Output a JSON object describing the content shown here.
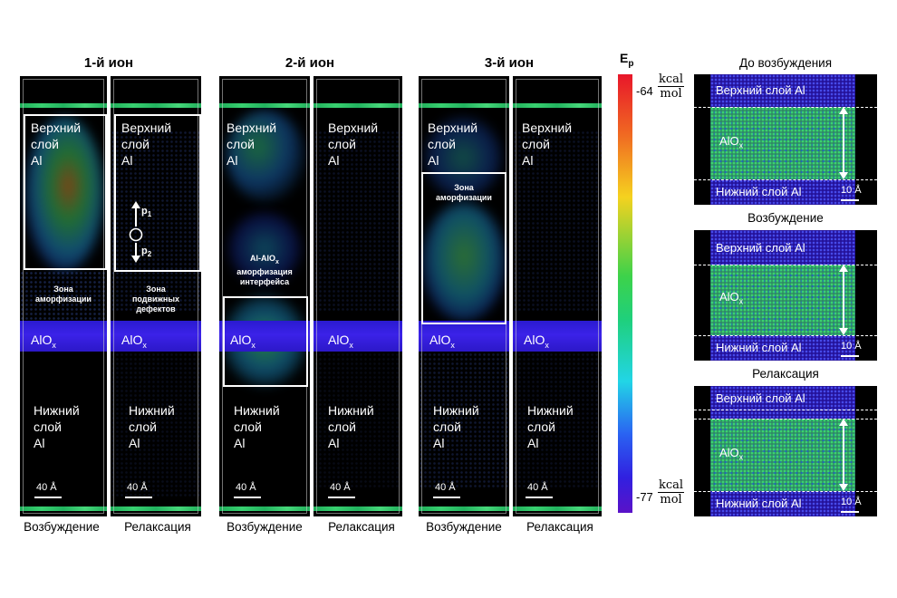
{
  "colorbar": {
    "label": "E",
    "label_sub": "p",
    "max_value": "-64",
    "min_value": "-77",
    "unit_num": "kcal",
    "unit_den": "mol",
    "colors": [
      "#e8162a",
      "#f5d21f",
      "#3dd24a",
      "#22d5e6",
      "#3120e0"
    ]
  },
  "ions": [
    {
      "title": "1-й ион"
    },
    {
      "title": "2-й ион"
    },
    {
      "title": "3-й ион"
    }
  ],
  "captions": {
    "excitation": "Возбуждение",
    "relaxation": "Релаксация"
  },
  "panel_labels": {
    "upper_l1": "Верхний",
    "upper_l2": "слой",
    "upper_l3": "Al",
    "lower_l1": "Нижний",
    "lower_l2": "слой",
    "lower_l3": "Al",
    "oxide": "AlO",
    "oxide_sub": "x",
    "scale": "40 Å"
  },
  "annotations": {
    "amorph_zone_1": "Зона",
    "amorph_zone_2": "аморфизации",
    "mobile_defects_1": "Зона",
    "mobile_defects_2": "подвижных",
    "mobile_defects_3": "дефектов",
    "interface_1": "Al-AlO",
    "interface_1_sub": "x",
    "interface_2": "аморфизация",
    "interface_3": "интерфейса",
    "amorph3_1": "Зона",
    "amorph3_2": "аморфизации",
    "p1": "p",
    "p1_sub": "1",
    "p2": "p",
    "p2_sub": "2"
  },
  "right_column": {
    "titles": [
      "До возбуждения",
      "Возбуждение",
      "Релаксация"
    ],
    "upper": "Верхний слой Al",
    "lower": "Нижний слой Al",
    "oxide": "AlO",
    "oxide_sub": "x",
    "scale": "10 Å"
  }
}
